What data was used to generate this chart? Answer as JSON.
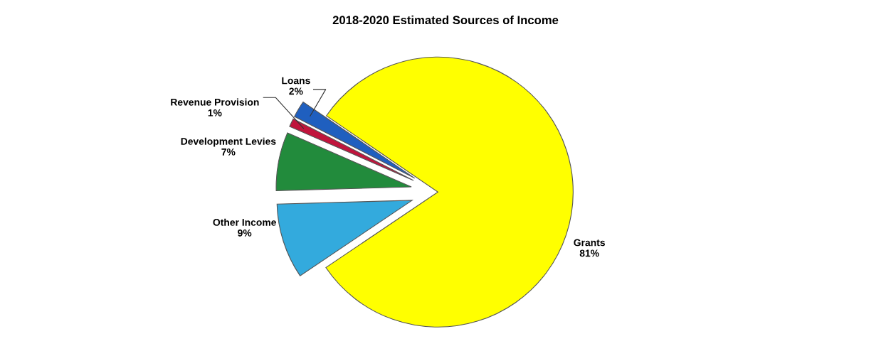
{
  "chart_data": {
    "type": "pie",
    "title": "2018-2020 Estimated Sources of Income",
    "categories": [
      "Grants",
      "Loans",
      "Revenue Provision",
      "Development Levies",
      "Other Income"
    ],
    "values": [
      81,
      2,
      1,
      7,
      9
    ],
    "value_labels": [
      "81%",
      "2%",
      "1%",
      "7%",
      "9%"
    ],
    "colors": [
      "#ffff00",
      "#1f5fbf",
      "#c0143c",
      "#228b3c",
      "#33aadd"
    ],
    "legend": false
  }
}
